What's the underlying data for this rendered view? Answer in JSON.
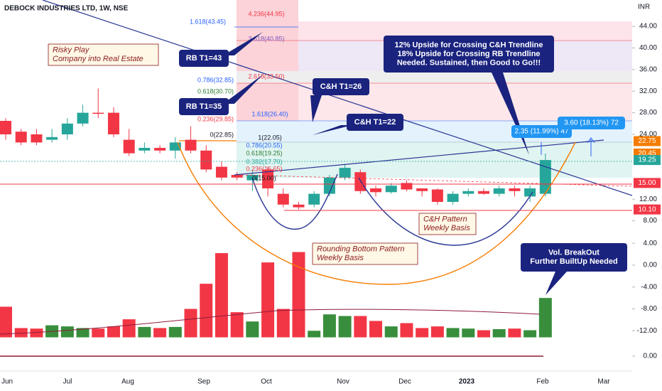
{
  "chart_data": {
    "type": "candlestick",
    "title": "DEBOCK INDUSTRIES LTD, 1W, NSE",
    "currency": "INR",
    "x_labels": [
      "Jun",
      "Jul",
      "Aug",
      "Sep",
      "Oct",
      "Nov",
      "Dec",
      "2023",
      "Feb",
      "Mar"
    ],
    "up_color": "#26a69a",
    "down_color": "#f23645",
    "open": [
      26.5,
      24.5,
      24,
      23,
      24,
      26,
      28,
      28,
      23,
      21,
      21.5,
      21,
      23,
      21,
      18,
      16.5,
      15.5,
      17.5,
      13,
      11,
      11,
      13,
      16,
      17,
      14,
      13.3,
      15,
      14,
      13.8,
      11.5,
      13,
      13.5,
      13,
      14,
      12.5,
      13
    ],
    "high": [
      27,
      25,
      25,
      25,
      27,
      29.5,
      32.5,
      29,
      25,
      22.5,
      22,
      23.5,
      25.5,
      22,
      19,
      17,
      17.5,
      18,
      14,
      11.5,
      13.5,
      16.5,
      18.5,
      17.5,
      14.5,
      15,
      15.5,
      14,
      14,
      13.5,
      14,
      14,
      14.5,
      14.5,
      14.5,
      20.45
    ],
    "low": [
      23,
      22,
      22,
      22.5,
      23,
      25.5,
      27,
      23.5,
      20,
      20.5,
      20.5,
      19.5,
      20.5,
      17,
      15.5,
      15.5,
      13.5,
      12.5,
      10.5,
      10.1,
      10.5,
      12.5,
      15.5,
      13,
      12.5,
      13,
      13.5,
      12.5,
      11,
      11,
      12.5,
      12.8,
      12.5,
      12.5,
      11.5,
      12.5
    ],
    "close": [
      24,
      22.5,
      22.5,
      23.5,
      26,
      28,
      27.8,
      24,
      20.5,
      21.5,
      21,
      22.5,
      21,
      17.5,
      16,
      16,
      16.5,
      14,
      11,
      10.5,
      13,
      16,
      17.8,
      13.5,
      13.3,
      14.5,
      13.8,
      13.5,
      11.5,
      13,
      13.5,
      13,
      14,
      13.5,
      14,
      19.25
    ],
    "volume": [
      -7.6,
      -11.5,
      -11.6,
      -11,
      -11.2,
      -11.5,
      -11.6,
      -11.2,
      -9.9,
      -11.3,
      -11.5,
      -11.3,
      -8,
      -3.4,
      2.2,
      -8.6,
      -10.3,
      0.5,
      -8,
      2.4,
      -12,
      -9,
      -9.3,
      -9.3,
      -10.2,
      -11.2,
      -10.6,
      -11.5,
      -11.2,
      -11.5,
      -11.6,
      -11.9,
      -11.7,
      -11.6,
      -11.9,
      -6
    ],
    "volume_up_color": "#388e3c",
    "volume_down_color": "#f23645",
    "ylim": [
      6,
      46.9
    ],
    "yticks": [
      {
        "value": 44,
        "label": "44.00"
      },
      {
        "value": 40,
        "label": "40.00"
      },
      {
        "value": 36,
        "label": "36.00"
      },
      {
        "value": 32,
        "label": "32.00"
      },
      {
        "value": 28,
        "label": "28.00"
      },
      {
        "value": 24,
        "label": "24.00"
      },
      {
        "value": 12,
        "label": "12.00"
      },
      {
        "value": 8,
        "label": "8.00"
      }
    ],
    "y2lim": [
      -13.2,
      7
    ],
    "y2ticks": [
      {
        "value": 4,
        "label": "4.00"
      },
      {
        "value": 0,
        "label": "0.00"
      },
      {
        "value": -4,
        "label": "-4.00"
      },
      {
        "value": -8,
        "label": "-8.00"
      },
      {
        "value": -12,
        "label": "-12.00"
      }
    ],
    "indicator_ticks": [
      {
        "value": 0,
        "label": "0.00"
      }
    ],
    "price_labels": [
      {
        "value": 22.75,
        "label": "22.75",
        "color": "#f57c00"
      },
      {
        "value": 20.45,
        "label": "20.45",
        "color": "#f57c00"
      },
      {
        "value": 19.25,
        "label": "19.25",
        "color": "#26a69a"
      },
      {
        "value": 15,
        "label": "15.00",
        "color": "#f23645"
      },
      {
        "value": 10.1,
        "label": "10.10",
        "color": "#f23645"
      }
    ],
    "fib_labels": [
      "4.236(44.95)",
      "1.618(43.45)",
      "3.618(40.85)",
      "2.618(33.50)",
      "0.786(32.85)",
      "0.618(30.70)",
      "0.236(29.85)",
      "1.618(26.40)",
      "0(22.85)",
      "1(22.05)",
      "0.786(20.55)",
      "0.618(19.25)",
      "0.382(17.70)",
      "0.236(16.65)",
      "0(15.00)"
    ],
    "annotations": [
      {
        "lines": [
          "Risky Play",
          "Company into Real Estate"
        ]
      },
      {
        "lines": [
          "RB T1=43"
        ]
      },
      {
        "lines": [
          "RB T1=35"
        ]
      },
      {
        "lines": [
          "C&H T1=26"
        ]
      },
      {
        "lines": [
          "C&H T1=22"
        ]
      },
      {
        "lines": [
          "12% Upside for Crossing C&H Trendline",
          "18% Upside for Crossing RB Trendline",
          "Needed. Sustained, then Good to Go!!!"
        ]
      },
      {
        "lines": [
          "C&H Pattern",
          "Weekly Basis"
        ]
      },
      {
        "lines": [
          "Rounding Bottom Pattern",
          "Weekly Basis"
        ]
      },
      {
        "lines": [
          "Vol. BreakOut",
          "Further BuiltUp Needed"
        ]
      },
      {
        "lines": [
          "2.35 (11.99%) 47"
        ]
      },
      {
        "lines": [
          "3.60 (18.13%) 72"
        ]
      }
    ]
  }
}
